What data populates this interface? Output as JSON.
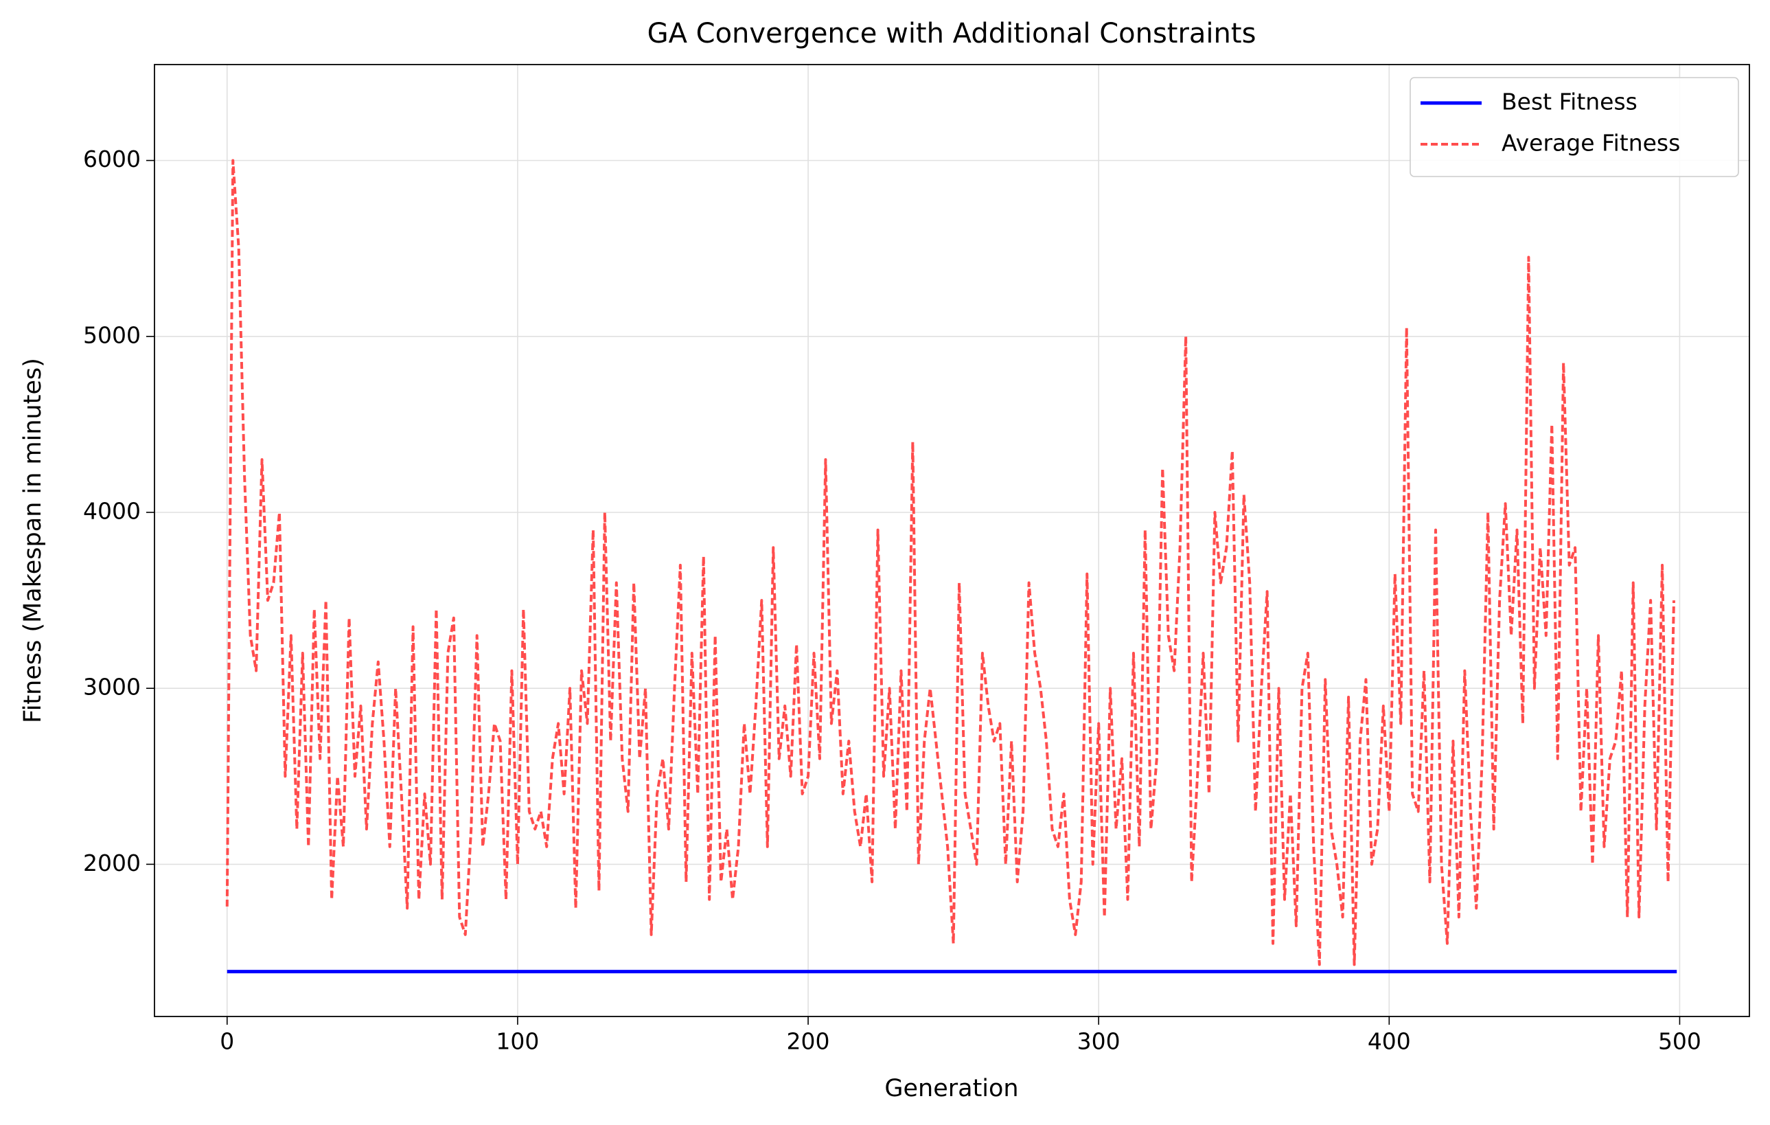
{
  "chart_data": {
    "type": "line",
    "title": "GA Convergence with Additional Constraints",
    "x_label": "Generation",
    "y_label": "Fitness (Makespan in minutes)",
    "x": [
      0,
      2,
      4,
      6,
      8,
      10,
      12,
      14,
      16,
      18,
      20,
      22,
      24,
      26,
      28,
      30,
      32,
      34,
      36,
      38,
      40,
      42,
      44,
      46,
      48,
      50,
      52,
      54,
      56,
      58,
      60,
      62,
      64,
      66,
      68,
      70,
      72,
      74,
      76,
      78,
      80,
      82,
      84,
      86,
      88,
      90,
      92,
      94,
      96,
      98,
      100,
      102,
      104,
      106,
      108,
      110,
      112,
      114,
      116,
      118,
      120,
      122,
      124,
      126,
      128,
      130,
      132,
      134,
      136,
      138,
      140,
      142,
      144,
      146,
      148,
      150,
      152,
      154,
      156,
      158,
      160,
      162,
      164,
      166,
      168,
      170,
      172,
      174,
      176,
      178,
      180,
      182,
      184,
      186,
      188,
      190,
      192,
      194,
      196,
      198,
      200,
      202,
      204,
      206,
      208,
      210,
      212,
      214,
      216,
      218,
      220,
      222,
      224,
      226,
      228,
      230,
      232,
      234,
      236,
      238,
      240,
      242,
      244,
      246,
      248,
      250,
      252,
      254,
      256,
      258,
      260,
      262,
      264,
      266,
      268,
      270,
      272,
      274,
      276,
      278,
      280,
      282,
      284,
      286,
      288,
      290,
      292,
      294,
      296,
      298,
      300,
      302,
      304,
      306,
      308,
      310,
      312,
      314,
      316,
      318,
      320,
      322,
      324,
      326,
      328,
      330,
      332,
      334,
      336,
      338,
      340,
      342,
      344,
      346,
      348,
      350,
      352,
      354,
      356,
      358,
      360,
      362,
      364,
      366,
      368,
      370,
      372,
      374,
      376,
      378,
      380,
      382,
      384,
      386,
      388,
      390,
      392,
      394,
      396,
      398,
      400,
      402,
      404,
      406,
      408,
      410,
      412,
      414,
      416,
      418,
      420,
      422,
      424,
      426,
      428,
      430,
      432,
      434,
      436,
      438,
      440,
      442,
      444,
      446,
      448,
      450,
      452,
      454,
      456,
      458,
      460,
      462,
      464,
      466,
      468,
      470,
      472,
      474,
      476,
      478,
      480,
      482,
      484,
      486,
      488,
      490,
      492,
      494,
      496,
      498
    ],
    "series": [
      {
        "name": "Best Fitness",
        "color": "#0000ff",
        "dash": "solid",
        "x": [
          0,
          499
        ],
        "values": [
          1390,
          1390
        ]
      },
      {
        "name": "Average Fitness",
        "color": "#ff4d4d",
        "dash": "dashed",
        "values": [
          1760,
          6000,
          5500,
          4200,
          3300,
          3100,
          4300,
          3500,
          3600,
          4000,
          2500,
          3300,
          2200,
          3200,
          2100,
          3450,
          2600,
          3500,
          1800,
          2500,
          2100,
          3400,
          2500,
          2900,
          2200,
          2800,
          3150,
          2700,
          2100,
          3000,
          2400,
          1750,
          3350,
          1800,
          2400,
          2000,
          3450,
          1800,
          3200,
          3400,
          1700,
          1600,
          2200,
          3300,
          2100,
          2400,
          2800,
          2700,
          1800,
          3100,
          2000,
          3450,
          2300,
          2200,
          2300,
          2100,
          2600,
          2800,
          2400,
          3000,
          1750,
          3100,
          2800,
          3900,
          1850,
          4000,
          2700,
          3600,
          2600,
          2300,
          3600,
          2600,
          3000,
          1600,
          2400,
          2600,
          2200,
          3000,
          3700,
          1900,
          3200,
          2400,
          3750,
          1800,
          3300,
          1900,
          2200,
          1800,
          2100,
          2800,
          2400,
          2900,
          3500,
          2100,
          3800,
          2600,
          2900,
          2500,
          3250,
          2400,
          2500,
          3200,
          2600,
          4300,
          2800,
          3100,
          2400,
          2700,
          2300,
          2100,
          2400,
          1900,
          3900,
          2500,
          3000,
          2200,
          3100,
          2300,
          4400,
          2000,
          2700,
          3000,
          2700,
          2400,
          2100,
          1550,
          3600,
          2400,
          2200,
          2000,
          3200,
          2900,
          2700,
          2800,
          2000,
          2700,
          1900,
          2300,
          3600,
          3200,
          3000,
          2700,
          2200,
          2100,
          2400,
          1800,
          1600,
          1900,
          3650,
          2000,
          2800,
          1700,
          3000,
          2200,
          2600,
          1800,
          3200,
          2100,
          3900,
          2200,
          2600,
          4250,
          3300,
          3100,
          3800,
          5000,
          1900,
          2500,
          3200,
          2400,
          4000,
          3600,
          3800,
          4350,
          2700,
          4100,
          3600,
          2300,
          3000,
          3550,
          1550,
          3000,
          1800,
          2400,
          1650,
          3000,
          3200,
          2100,
          1430,
          3050,
          2200,
          2000,
          1700,
          2950,
          1430,
          2700,
          3050,
          2000,
          2200,
          2900,
          2300,
          3650,
          2800,
          5050,
          2400,
          2300,
          3100,
          1900,
          3900,
          2000,
          1550,
          2700,
          1700,
          3100,
          2300,
          1750,
          2600,
          4000,
          2200,
          3500,
          4050,
          3300,
          3900,
          2800,
          5450,
          3000,
          3800,
          3300,
          4500,
          2600,
          4850,
          3700,
          3800,
          2300,
          3000,
          2000,
          3300,
          2100,
          2600,
          2700,
          3100,
          1700,
          3600,
          1700,
          2900,
          3500,
          2200,
          3700,
          1900,
          3500
        ]
      }
    ],
    "xlim": [
      -25,
      524
    ],
    "ylim": [
      1135,
      6545
    ],
    "xticks": [
      0,
      100,
      200,
      300,
      400,
      500
    ],
    "yticks": [
      2000,
      3000,
      4000,
      5000,
      6000
    ],
    "grid": true,
    "legend": "upper right"
  }
}
